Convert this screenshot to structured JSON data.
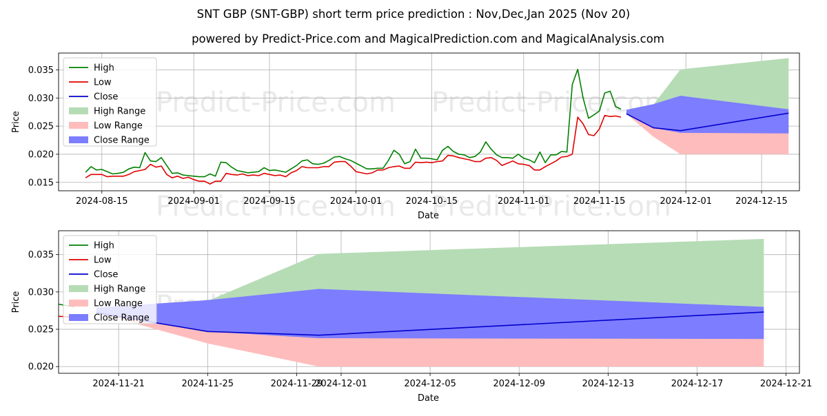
{
  "page": {
    "title": "SNT GBP (SNT-GBP) short term price prediction : Nov,Dec,Jan 2025 (Nov 20)",
    "subtitle": "powered by Predict-Price.com and MagicalPrediction.com and MagicalAnalysis.com",
    "watermark": "Predict-Price.com",
    "colors": {
      "high": "#008000",
      "low": "#e00000",
      "close": "#0000cc",
      "high_range": "#b6dcb6",
      "low_range": "#ffbcbc",
      "close_range": "#7d7dff"
    }
  },
  "chart_data": [
    {
      "type": "line",
      "title": "",
      "xlabel": "Date",
      "ylabel": "Price",
      "xlim": [
        "2024-08-07",
        "2024-12-22"
      ],
      "ylim": [
        0.0135,
        0.038
      ],
      "x_ticks": [
        "2024-08-15",
        "2024-09-01",
        "2024-09-15",
        "2024-10-01",
        "2024-10-15",
        "2024-11-01",
        "2024-11-15",
        "2024-12-01",
        "2024-12-15"
      ],
      "y_ticks": [
        "0.015",
        "0.020",
        "0.025",
        "0.030",
        "0.035"
      ],
      "grid": true,
      "legend": {
        "placement": "top-left",
        "entries": [
          "High",
          "Low",
          "Close",
          "High Range",
          "Low Range",
          "Close Range"
        ]
      }
    },
    {
      "type": "line",
      "title": "",
      "xlabel": "Date",
      "ylabel": "Price",
      "xlim": [
        "2024-11-18.3",
        "2024-12-21.6"
      ],
      "ylim": [
        0.0191,
        0.0382
      ],
      "x_ticks": [
        "2024-11-21",
        "2024-11-25",
        "2024-11-29",
        "2024-12-01",
        "2024-12-05",
        "2024-12-09",
        "2024-12-13",
        "2024-12-17",
        "2024-12-21"
      ],
      "y_ticks": [
        "0.020",
        "0.025",
        "0.030",
        "0.035"
      ],
      "grid": true,
      "legend": {
        "placement": "top-left",
        "entries": [
          "High",
          "Low",
          "Close",
          "High Range",
          "Low Range",
          "Close Range"
        ]
      }
    }
  ],
  "series": {
    "history_start": "2024-08-12",
    "high": [
      0.0168,
      0.0178,
      0.0172,
      0.0173,
      0.0169,
      0.0165,
      0.0166,
      0.0168,
      0.0174,
      0.0177,
      0.0176,
      0.0203,
      0.0188,
      0.0187,
      0.0194,
      0.018,
      0.0166,
      0.0167,
      0.0163,
      0.0162,
      0.0161,
      0.016,
      0.016,
      0.0165,
      0.0161,
      0.0186,
      0.0185,
      0.0177,
      0.0171,
      0.0169,
      0.0167,
      0.0168,
      0.0169,
      0.0176,
      0.0171,
      0.0172,
      0.017,
      0.0168,
      0.0174,
      0.018,
      0.0188,
      0.019,
      0.0183,
      0.0182,
      0.0184,
      0.0189,
      0.0195,
      0.0196,
      0.0192,
      0.0189,
      0.0184,
      0.0179,
      0.0174,
      0.0174,
      0.0175,
      0.0175,
      0.0189,
      0.0207,
      0.02,
      0.0183,
      0.0187,
      0.0209,
      0.0193,
      0.0193,
      0.0192,
      0.019,
      0.0207,
      0.0214,
      0.0205,
      0.02,
      0.0199,
      0.0194,
      0.0196,
      0.0204,
      0.0222,
      0.0209,
      0.0199,
      0.0194,
      0.0194,
      0.0193,
      0.02,
      0.0193,
      0.019,
      0.0185,
      0.0204,
      0.0185,
      0.0199,
      0.0199,
      0.0205,
      0.0204,
      0.0324,
      0.0351,
      0.03,
      0.0264,
      0.027,
      0.0277,
      0.0309,
      0.0312,
      0.0285,
      0.028
    ],
    "low": [
      0.0158,
      0.0164,
      0.0164,
      0.0164,
      0.016,
      0.0161,
      0.0161,
      0.0161,
      0.0164,
      0.0169,
      0.0171,
      0.0173,
      0.0182,
      0.0177,
      0.0179,
      0.0164,
      0.0158,
      0.0161,
      0.0157,
      0.0159,
      0.0155,
      0.0152,
      0.0152,
      0.0147,
      0.0152,
      0.0152,
      0.0166,
      0.0164,
      0.0163,
      0.0165,
      0.0162,
      0.0163,
      0.0162,
      0.0166,
      0.0164,
      0.0162,
      0.0163,
      0.016,
      0.0167,
      0.0171,
      0.0178,
      0.0176,
      0.0176,
      0.0176,
      0.0178,
      0.0178,
      0.0186,
      0.0187,
      0.0187,
      0.0179,
      0.0169,
      0.0167,
      0.0165,
      0.0167,
      0.0172,
      0.0172,
      0.0176,
      0.0178,
      0.0179,
      0.0175,
      0.0175,
      0.0186,
      0.0185,
      0.0186,
      0.0185,
      0.0187,
      0.0188,
      0.0198,
      0.0197,
      0.0194,
      0.0192,
      0.019,
      0.0187,
      0.0187,
      0.0193,
      0.0194,
      0.0189,
      0.018,
      0.0184,
      0.0188,
      0.0183,
      0.0182,
      0.018,
      0.0172,
      0.0172,
      0.0178,
      0.0183,
      0.0188,
      0.0195,
      0.0196,
      0.02,
      0.0266,
      0.0254,
      0.0235,
      0.0233,
      0.0245,
      0.0269,
      0.0267,
      0.0268,
      0.0266
    ],
    "forecast": {
      "dates": [
        "2024-11-20",
        "2024-11-25",
        "2024-11-30",
        "2024-12-20"
      ],
      "close": [
        0.0272,
        0.0247,
        0.0242,
        0.0273
      ],
      "high_range": {
        "upper": [
          0.0272,
          0.0288,
          0.0351,
          0.0371
        ],
        "lower": [
          0.0272,
          0.0247,
          0.0242,
          0.0273
        ]
      },
      "low_range": {
        "upper": [
          0.0272,
          0.0247,
          0.0242,
          0.0273
        ],
        "lower": [
          0.0272,
          0.0231,
          0.02,
          0.02
        ]
      },
      "close_range": {
        "upper": [
          0.0279,
          0.0289,
          0.0304,
          0.028
        ],
        "lower": [
          0.0272,
          0.0247,
          0.0238,
          0.0237
        ]
      }
    }
  }
}
